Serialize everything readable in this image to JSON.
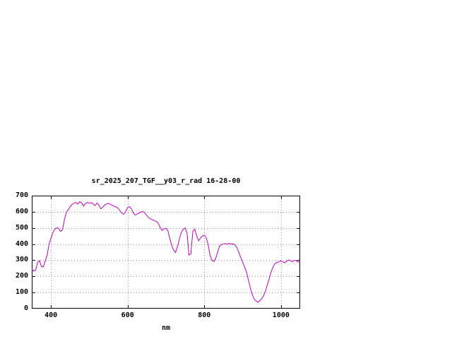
{
  "chart_data": {
    "type": "line",
    "title": "sr_2025_207_TGF__y03_r_rad 16-28-00",
    "xlabel": "nm",
    "ylabel": "",
    "xlim": [
      350,
      1050
    ],
    "ylim": [
      0,
      700
    ],
    "xticks": [
      400,
      600,
      800,
      1000
    ],
    "yticks": [
      0,
      100,
      200,
      300,
      400,
      500,
      600,
      700
    ],
    "grid": true,
    "legend": "none",
    "line_color": "#c000c0",
    "grid_color": "#909090",
    "border_color": "#000000",
    "series": [
      {
        "name": "sr_2025_207_TGF__y03_r_rad",
        "x": [
          350,
          355,
          360,
          365,
          370,
          375,
          380,
          385,
          390,
          395,
          400,
          405,
          410,
          415,
          420,
          425,
          430,
          435,
          440,
          445,
          450,
          455,
          460,
          465,
          470,
          475,
          480,
          485,
          490,
          495,
          500,
          505,
          510,
          515,
          520,
          525,
          530,
          535,
          540,
          545,
          550,
          555,
          560,
          565,
          570,
          575,
          580,
          585,
          590,
          595,
          600,
          605,
          610,
          615,
          620,
          625,
          630,
          635,
          640,
          645,
          650,
          655,
          660,
          665,
          670,
          675,
          680,
          685,
          690,
          695,
          700,
          705,
          710,
          715,
          720,
          725,
          730,
          735,
          740,
          745,
          750,
          755,
          760,
          765,
          770,
          775,
          780,
          785,
          790,
          795,
          800,
          805,
          810,
          815,
          820,
          825,
          830,
          835,
          840,
          845,
          850,
          855,
          860,
          865,
          870,
          875,
          880,
          885,
          890,
          895,
          900,
          905,
          910,
          915,
          920,
          925,
          930,
          935,
          940,
          945,
          950,
          955,
          960,
          965,
          970,
          975,
          980,
          985,
          990,
          995,
          1000,
          1005,
          1010,
          1015,
          1020,
          1025,
          1030,
          1035,
          1040,
          1045,
          1050
        ],
        "y": [
          248,
          232,
          238,
          285,
          298,
          262,
          258,
          295,
          330,
          400,
          435,
          470,
          492,
          500,
          498,
          478,
          488,
          548,
          598,
          612,
          632,
          645,
          652,
          658,
          648,
          662,
          655,
          635,
          650,
          658,
          652,
          657,
          649,
          638,
          654,
          642,
          618,
          628,
          642,
          648,
          652,
          646,
          640,
          634,
          630,
          622,
          608,
          590,
          585,
          602,
          626,
          632,
          618,
          592,
          580,
          586,
          592,
          600,
          601,
          592,
          578,
          562,
          556,
          550,
          545,
          540,
          528,
          502,
          485,
          495,
          498,
          482,
          435,
          392,
          362,
          348,
          382,
          432,
          472,
          492,
          500,
          468,
          332,
          340,
          478,
          492,
          452,
          420,
          438,
          450,
          455,
          438,
          398,
          330,
          300,
          292,
          312,
          352,
          388,
          398,
          400,
          404,
          399,
          405,
          400,
          401,
          395,
          378,
          348,
          318,
          288,
          258,
          228,
          178,
          128,
          88,
          60,
          46,
          40,
          50,
          62,
          82,
          112,
          152,
          192,
          232,
          262,
          280,
          286,
          290,
          296,
          290,
          284,
          295,
          302,
          296,
          290,
          300,
          296,
          288,
          294
        ]
      }
    ]
  }
}
